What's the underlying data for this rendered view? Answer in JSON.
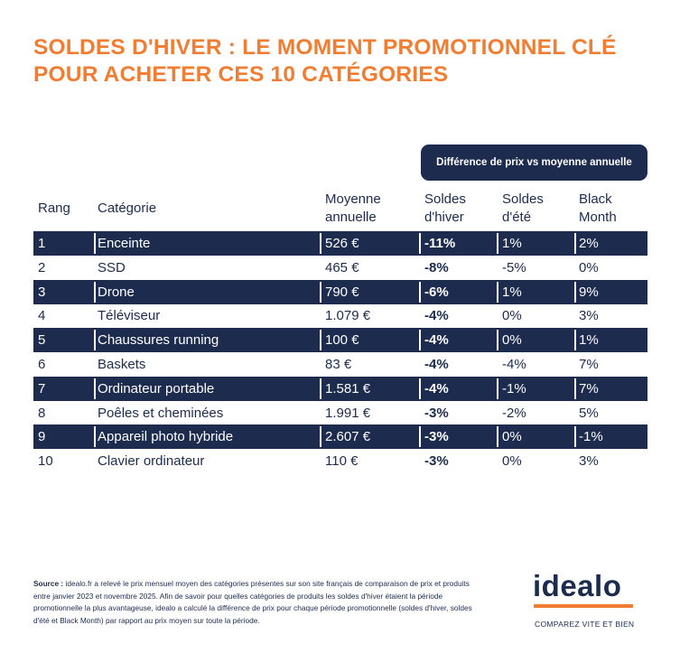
{
  "header": {
    "title_lines": [
      "SOLDES D'HIVER : LE MOMENT PROMOTIONNEL CLÉ",
      "POUR ACHETER CES 10 CATÉGORIES"
    ]
  },
  "table": {
    "group_header": "Différence de prix vs moyenne annuelle",
    "columns": [
      [
        "Rang"
      ],
      [
        "Catégorie"
      ],
      [
        "Moyenne",
        "annuelle"
      ],
      [
        "Soldes",
        "d'hiver"
      ],
      [
        "Soldes",
        "d'été"
      ],
      [
        "Black",
        "Month"
      ]
    ],
    "rows": [
      [
        "1",
        "Enceinte",
        "526 €",
        "-11%",
        "1%",
        "2%"
      ],
      [
        "2",
        "SSD",
        "465 €",
        "-8%",
        "-5%",
        "0%"
      ],
      [
        "3",
        "Drone",
        "790 €",
        "-6%",
        "1%",
        "9%"
      ],
      [
        "4",
        "Téléviseur",
        "1.079 €",
        "-4%",
        "0%",
        "3%"
      ],
      [
        "5",
        "Chaussures running",
        "100 €",
        "-4%",
        "0%",
        "1%"
      ],
      [
        "6",
        "Baskets",
        "83 €",
        "-4%",
        "-4%",
        "7%"
      ],
      [
        "7",
        "Ordinateur portable",
        "1.581 €",
        "-4%",
        "-1%",
        "7%"
      ],
      [
        "8",
        "Poêles et cheminées",
        "1.991 €",
        "-3%",
        "-2%",
        "5%"
      ],
      [
        "9",
        "Appareil photo hybride",
        "2.607 €",
        "-3%",
        "0%",
        "-1%"
      ],
      [
        "10",
        "Clavier ordinateur",
        "110 €",
        "-3%",
        "0%",
        "3%"
      ]
    ]
  },
  "footer": {
    "source_label": "Source :",
    "source_text": "idealo.fr a relevé le prix mensuel moyen des catégories présentes sur son site français de comparaison de prix et produits entre janvier 2023 et novembre 2025. Afin de savoir pour quelles catégories de produits les soldes d'hiver étaient la période promotionnelle la plus avantageuse, idealo a calculé la différence de prix pour chaque période promotionnelle (soldes d'hiver, soldes d'été et Black Month) par rapport au prix moyen sur toute la période.",
    "logo": "idealo",
    "tagline": "COMPAREZ VITE ET BIEN"
  }
}
